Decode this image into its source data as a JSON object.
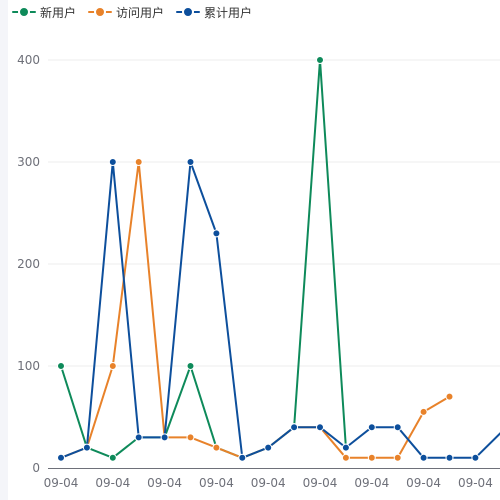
{
  "chart_data": {
    "type": "line",
    "categories": [
      "09-04",
      "09-04",
      "09-04",
      "09-04",
      "09-04",
      "09-04",
      "09-04",
      "09-04",
      "09-04",
      "09-04",
      "09-04",
      "09-04",
      "09-04",
      "09-04",
      "09-04",
      "09-04",
      "09-04",
      "09-04",
      "09-04"
    ],
    "x_tick_labels": [
      "09-04",
      "09-04",
      "09-04",
      "09-04",
      "09-04",
      "09-04",
      "09-04",
      "09-04",
      "09-04"
    ],
    "y_ticks": [
      "0",
      "100",
      "200",
      "300",
      "400"
    ],
    "ylim": [
      0,
      400
    ],
    "grid": true,
    "legend_position": "top-left",
    "series": [
      {
        "name": "新用户",
        "color": "#0e8a5a",
        "values": [
          100,
          20,
          10,
          30,
          30,
          100,
          20,
          10,
          20,
          40,
          400,
          20,
          null,
          null,
          null,
          null,
          null,
          null,
          null
        ]
      },
      {
        "name": "访问用户",
        "color": "#e8822a",
        "values": [
          10,
          20,
          100,
          300,
          30,
          30,
          20,
          10,
          20,
          40,
          40,
          10,
          10,
          10,
          55,
          70,
          null,
          null,
          null
        ]
      },
      {
        "name": "累计用户",
        "color": "#0d4f9c",
        "values": [
          10,
          20,
          300,
          30,
          30,
          300,
          230,
          10,
          20,
          40,
          40,
          20,
          40,
          40,
          10,
          10,
          10,
          35,
          null
        ]
      }
    ]
  }
}
